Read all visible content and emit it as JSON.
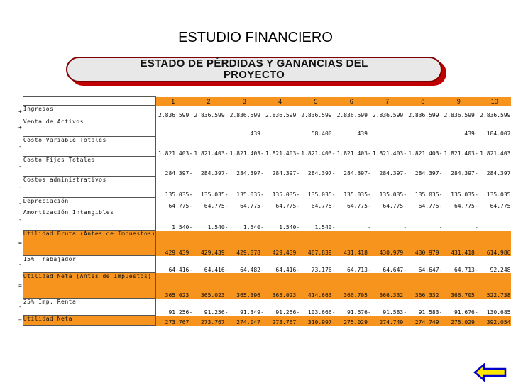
{
  "slide": {
    "title": "ESTUDIO FINANCIERO"
  },
  "banner": {
    "line1": "ESTADO DE PÉRDIDAS Y GANANCIAS DEL",
    "line2": "PROYECTO"
  },
  "table": {
    "years": [
      "1",
      "2",
      "3",
      "4",
      "5",
      "6",
      "7",
      "8",
      "9",
      "10"
    ],
    "rows": [
      {
        "op": "+",
        "label": "Ingresos",
        "dash": false,
        "highlight": false,
        "values": [
          "2.836.599",
          "2.836.599",
          "2.836.599",
          "2.836.599",
          "2.836.599",
          "2.836.599",
          "2.836.599",
          "2.836.599",
          "2.836.599",
          "2.836.599"
        ]
      },
      {
        "op": "+",
        "label": "Venta de Activos",
        "dash": false,
        "highlight": false,
        "values": [
          "",
          "",
          "439",
          "",
          "58.400",
          "439",
          "",
          "",
          "439",
          "184.007"
        ]
      },
      {
        "op": "-",
        "label": "Costo Variable Totales",
        "dash": true,
        "highlight": false,
        "values": [
          "1.821.403",
          "1.821.403",
          "1.821.403",
          "1.821.403",
          "1.821.403",
          "1.821.403",
          "1.821.403",
          "1.821.403",
          "1.821.403",
          "1.821.403"
        ]
      },
      {
        "op": "-",
        "label": "Costo Fijos Totales",
        "dash": true,
        "highlight": false,
        "values": [
          "284.397",
          "284.397",
          "284.397",
          "284.397",
          "284.397",
          "284.397",
          "284.397",
          "284.397",
          "284.397",
          "284.397"
        ]
      },
      {
        "op": "-",
        "label": "Costos administrativos",
        "dash": true,
        "highlight": false,
        "values": [
          "135.035",
          "135.035",
          "135.035",
          "135.035",
          "135.035",
          "135.035",
          "135.035",
          "135.035",
          "135.035",
          "135.035"
        ]
      },
      {
        "op": "-",
        "label": "Depreciación",
        "dash": true,
        "highlight": false,
        "values": [
          "64.775",
          "64.775",
          "64.775",
          "64.775",
          "64.775",
          "64.775",
          "64.775",
          "64.775",
          "64.775",
          "64.775"
        ]
      },
      {
        "op": "-",
        "label": "Amortización Intangibles",
        "dash": true,
        "highlight": false,
        "values": [
          "1.540",
          "1.540",
          "1.540",
          "1.540",
          "1.540",
          "",
          "",
          "",
          "",
          ""
        ]
      },
      {
        "op": "=",
        "label": "Utilidad Bruta (Antes de Impuestos)",
        "dash": false,
        "highlight": true,
        "values": [
          "429.439",
          "429.439",
          "429.878",
          "429.439",
          "487.839",
          "431.418",
          "430.979",
          "430.979",
          "431.418",
          "614.986"
        ]
      },
      {
        "op": "-",
        "label": "15% Trabajador",
        "dash": true,
        "highlight": false,
        "values": [
          "64.416",
          "64.416",
          "64.482",
          "64.416",
          "73.176",
          "64.713",
          "64.647",
          "64.647",
          "64.713",
          "92.248"
        ]
      },
      {
        "op": "=",
        "label": "Utilidad Neta (Antes de Impuestos)",
        "dash": false,
        "highlight": true,
        "values": [
          "365.023",
          "365.023",
          "365.396",
          "365.023",
          "414.663",
          "366.705",
          "366.332",
          "366.332",
          "366.705",
          "522.738"
        ]
      },
      {
        "op": "-",
        "label": "25% Imp. Renta",
        "dash": true,
        "highlight": false,
        "values": [
          "91.256",
          "91.256",
          "91.349",
          "91.256",
          "103.666",
          "91.676",
          "91.583",
          "91.583",
          "91.676",
          "130.685"
        ]
      },
      {
        "op": "=",
        "label": "Utilidad Neta",
        "dash": false,
        "highlight": true,
        "values": [
          "273.767",
          "273.767",
          "274.047",
          "273.767",
          "310.997",
          "275.029",
          "274.749",
          "274.749",
          "275.029",
          "392.054"
        ]
      }
    ]
  },
  "colors": {
    "highlight": "#f7941d",
    "banner_border": "#7f0000",
    "banner_shadow": "#c00000",
    "arrow_fill": "#ffe600",
    "arrow_border": "#0000cc"
  },
  "nav": {
    "back_icon": "left-arrow-icon"
  }
}
